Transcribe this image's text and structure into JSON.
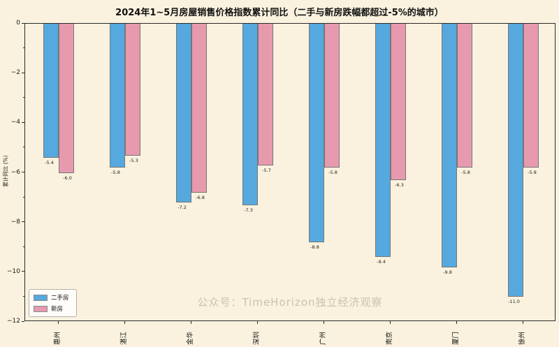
{
  "title": "2024年1~5月房屋销售价格指数累计同比（二手与新房跌幅都超过-5%的城市）",
  "watermark": "公众号：TimeHorizon独立经济观察",
  "chart_data": {
    "type": "bar",
    "title": "2024年1~5月房屋销售价格指数累计同比（二手与新房跌幅都超过-5%的城市）",
    "categories": [
      "惠州",
      "湛江",
      "金华",
      "深圳",
      "广州",
      "南京",
      "厦门",
      "徐州"
    ],
    "series": [
      {
        "name": "二手房",
        "color": "#55a9de",
        "values": [
          -5.4,
          -5.8,
          -7.2,
          -7.3,
          -8.8,
          -9.4,
          -9.8,
          -11.0
        ]
      },
      {
        "name": "新房",
        "color": "#e79aae",
        "values": [
          -6.0,
          -5.3,
          -6.8,
          -5.7,
          -5.8,
          -6.3,
          -5.8,
          -5.8
        ]
      }
    ],
    "xlabel": "",
    "ylabel": "累计同比 (%)",
    "ylim": [
      -12,
      0
    ],
    "yticks": [
      0,
      -2,
      -4,
      -6,
      -8,
      -10,
      -12
    ],
    "ytick_labels": [
      "0",
      "−2",
      "−4",
      "−6",
      "−8",
      "−10",
      "−12"
    ],
    "grid": false,
    "legend_position": "lower left",
    "background": "#faf2de",
    "bar_edge_color": "#767676"
  }
}
